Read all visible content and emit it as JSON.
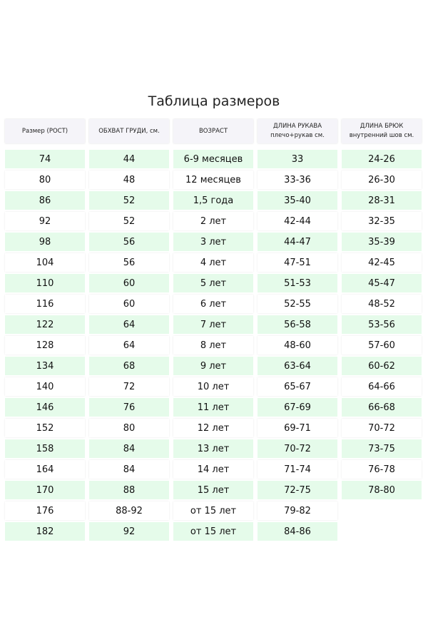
{
  "title": "Таблица размеров",
  "headers": [
    {
      "line1": "Размер (РОСТ)",
      "line2": ""
    },
    {
      "line1": "ОБХВАТ ГРУДИ, см.",
      "line2": ""
    },
    {
      "line1": "ВОЗРАСТ",
      "line2": ""
    },
    {
      "line1": "ДЛИНА РУКАВА",
      "line2": "плечо+рукав см."
    },
    {
      "line1": "ДЛИНА БРЮК",
      "line2": "внутренний шов см."
    }
  ],
  "rows": [
    [
      "74",
      "44",
      "6-9 месяцев",
      "33",
      "24-26"
    ],
    [
      "80",
      "48",
      "12 месяцев",
      "33-36",
      "26-30"
    ],
    [
      "86",
      "52",
      "1,5 года",
      "35-40",
      "28-31"
    ],
    [
      "92",
      "52",
      "2 лет",
      "42-44",
      "32-35"
    ],
    [
      "98",
      "56",
      "3 лет",
      "44-47",
      "35-39"
    ],
    [
      "104",
      "56",
      "4 лет",
      "47-51",
      "42-45"
    ],
    [
      "110",
      "60",
      "5 лет",
      "51-53",
      "45-47"
    ],
    [
      "116",
      "60",
      "6 лет",
      "52-55",
      "48-52"
    ],
    [
      "122",
      "64",
      "7 лет",
      "56-58",
      "53-56"
    ],
    [
      "128",
      "64",
      "8 лет",
      "48-60",
      "57-60"
    ],
    [
      "134",
      "68",
      "9 лет",
      "63-64",
      "60-62"
    ],
    [
      "140",
      "72",
      "10 лет",
      "65-67",
      "64-66"
    ],
    [
      "146",
      "76",
      "11 лет",
      "67-69",
      "66-68"
    ],
    [
      "152",
      "80",
      "12 лет",
      "69-71",
      "70-72"
    ],
    [
      "158",
      "84",
      "13 лет",
      "70-72",
      "73-75"
    ],
    [
      "164",
      "84",
      "14 лет",
      "71-74",
      "76-78"
    ],
    [
      "170",
      "88",
      "15 лет",
      "72-75",
      "78-80"
    ],
    [
      "176",
      "88-92",
      "от 15 лет",
      "79-82",
      ""
    ],
    [
      "182",
      "92",
      "от 15 лет",
      "84-86",
      ""
    ]
  ],
  "colors": {
    "green_row": "#e5fbea",
    "header_bg": "#f5f4f9"
  }
}
